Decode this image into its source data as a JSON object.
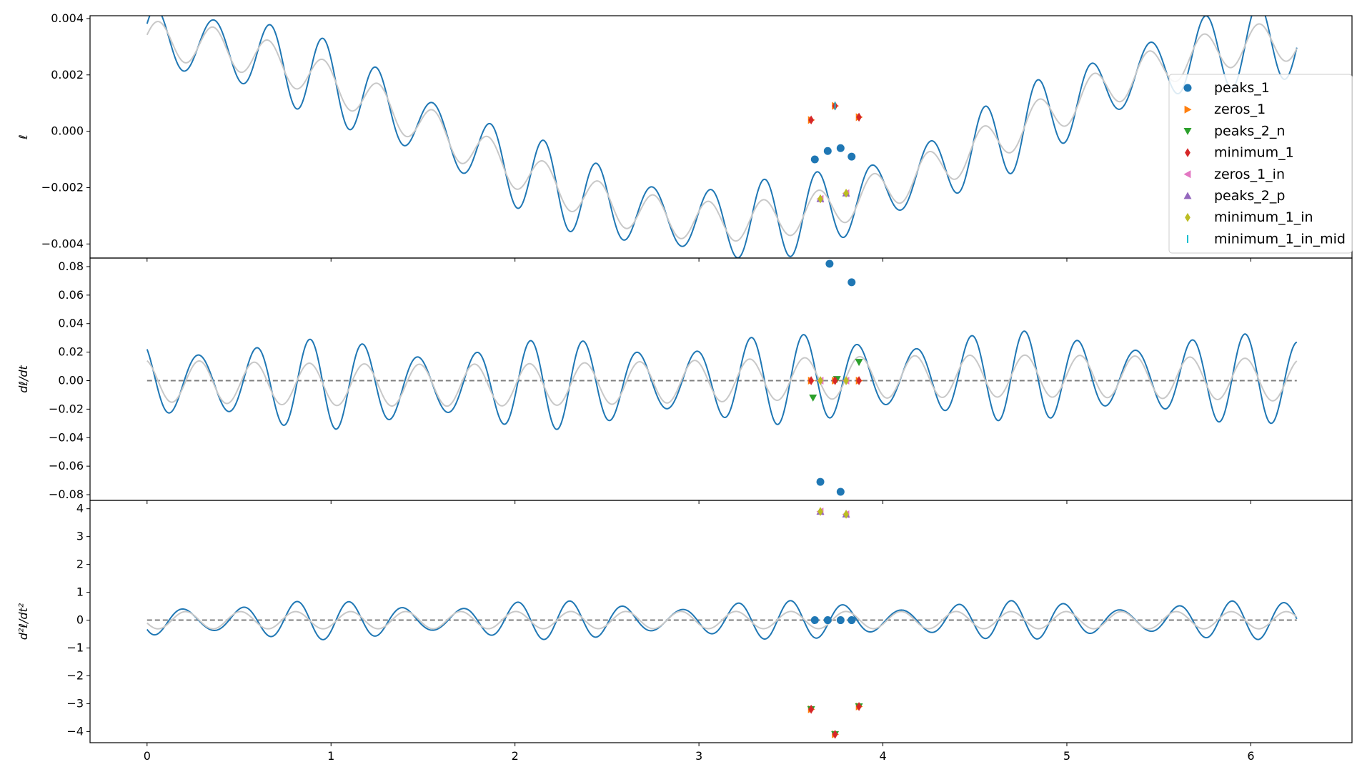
{
  "chart_data": [
    {
      "type": "line",
      "panel": "top",
      "ylabel": "ℓ",
      "xlim": [
        -0.31,
        6.55
      ],
      "ylim": [
        -0.0045,
        0.0041
      ],
      "yticks": [
        -0.004,
        -0.002,
        0.0,
        0.002,
        0.004
      ],
      "ytick_labels": [
        "−0.004",
        "−0.002",
        "0.000",
        "0.002",
        "0.004"
      ],
      "xticks": [
        0,
        1,
        2,
        3,
        4,
        5,
        6
      ],
      "xtick_labels": [
        "0",
        "1",
        "2",
        "3",
        "4",
        "5",
        "6"
      ],
      "series": [
        {
          "role": "signal",
          "color": "#1f77b4",
          "model": "0.0032*cos(t) + 0.0012*cos(21t-1.25) + 0.00025*cos(26t+0.3)",
          "t_range": [
            0,
            6.25
          ]
        },
        {
          "role": "smooth",
          "color": "#c8c8c8",
          "model": "0.0032*cos(t) + 0.0007*cos(21t-1.25)",
          "t_range": [
            0,
            6.25
          ]
        }
      ],
      "markers": [
        {
          "x": 3.63,
          "y": -0.001,
          "series": "peaks_1"
        },
        {
          "x": 3.7,
          "y": -0.0007,
          "series": "peaks_1"
        },
        {
          "x": 3.77,
          "y": -0.0006,
          "series": "peaks_1"
        },
        {
          "x": 3.83,
          "y": -0.0009,
          "series": "peaks_1"
        },
        {
          "x": 3.61,
          "y": 0.0004,
          "series": "zeros_1"
        },
        {
          "x": 3.74,
          "y": 0.0009,
          "series": "zeros_1"
        },
        {
          "x": 3.87,
          "y": 0.0005,
          "series": "zeros_1"
        },
        {
          "x": 3.61,
          "y": 0.0004,
          "series": "minimum_1"
        },
        {
          "x": 3.74,
          "y": 0.0009,
          "series": "minimum_1"
        },
        {
          "x": 3.87,
          "y": 0.0005,
          "series": "minimum_1"
        },
        {
          "x": 3.66,
          "y": -0.0024,
          "series": "zeros_1_in"
        },
        {
          "x": 3.8,
          "y": -0.0022,
          "series": "zeros_1_in"
        },
        {
          "x": 3.66,
          "y": -0.0024,
          "series": "peaks_2_p"
        },
        {
          "x": 3.8,
          "y": -0.0022,
          "series": "peaks_2_p"
        },
        {
          "x": 3.66,
          "y": -0.0024,
          "series": "minimum_1_in"
        },
        {
          "x": 3.8,
          "y": -0.0022,
          "series": "minimum_1_in"
        },
        {
          "x": 3.74,
          "y": 0.0009,
          "series": "minimum_1_in_mid"
        }
      ],
      "legend": {
        "position": "right",
        "entries": [
          {
            "label": "peaks_1",
            "color": "#1f77b4",
            "shape": "circle"
          },
          {
            "label": "zeros_1",
            "color": "#ff7f0e",
            "shape": "triangle-right"
          },
          {
            "label": "peaks_2_n",
            "color": "#2ca02c",
            "shape": "triangle-down"
          },
          {
            "label": "minimum_1",
            "color": "#d62728",
            "shape": "diamond"
          },
          {
            "label": "zeros_1_in",
            "color": "#e377c2",
            "shape": "triangle-left"
          },
          {
            "label": "peaks_2_p",
            "color": "#9467bd",
            "shape": "triangle-up"
          },
          {
            "label": "minimum_1_in",
            "color": "#bcbd22",
            "shape": "diamond"
          },
          {
            "label": "minimum_1_in_mid",
            "color": "#17becf",
            "shape": "vline"
          }
        ]
      }
    },
    {
      "type": "line",
      "panel": "middle",
      "ylabel": "dℓ/dt",
      "xlim": [
        -0.31,
        6.55
      ],
      "ylim": [
        -0.084,
        0.086
      ],
      "yticks": [
        -0.08,
        -0.06,
        -0.04,
        -0.02,
        0.0,
        0.02,
        0.04,
        0.06,
        0.08
      ],
      "ytick_labels": [
        "−0.08",
        "−0.06",
        "−0.04",
        "−0.02",
        "0.00",
        "0.02",
        "0.04",
        "0.06",
        "0.08"
      ],
      "xticks": [
        0,
        1,
        2,
        3,
        4,
        5,
        6
      ],
      "zero_line": true,
      "series": [
        {
          "role": "signal",
          "color": "#1f77b4",
          "model": "derivative of top signal",
          "t_range": [
            0,
            6.25
          ]
        },
        {
          "role": "smooth",
          "color": "#c8c8c8",
          "model": "derivative of top smooth",
          "t_range": [
            0,
            6.25
          ]
        }
      ],
      "markers": [
        {
          "x": 3.66,
          "y": -0.071,
          "series": "peaks_1"
        },
        {
          "x": 3.71,
          "y": 0.082,
          "series": "peaks_1"
        },
        {
          "x": 3.77,
          "y": -0.078,
          "series": "peaks_1"
        },
        {
          "x": 3.83,
          "y": 0.069,
          "series": "peaks_1"
        },
        {
          "x": 3.61,
          "y": 0.0,
          "series": "zeros_1"
        },
        {
          "x": 3.74,
          "y": 0.0,
          "series": "zeros_1"
        },
        {
          "x": 3.87,
          "y": 0.0,
          "series": "zeros_1"
        },
        {
          "x": 3.62,
          "y": -0.012,
          "series": "peaks_2_n"
        },
        {
          "x": 3.75,
          "y": 0.001,
          "series": "peaks_2_n"
        },
        {
          "x": 3.87,
          "y": 0.013,
          "series": "peaks_2_n"
        },
        {
          "x": 3.61,
          "y": 0.0,
          "series": "minimum_1"
        },
        {
          "x": 3.74,
          "y": 0.0,
          "series": "minimum_1"
        },
        {
          "x": 3.87,
          "y": 0.0,
          "series": "minimum_1"
        },
        {
          "x": 3.66,
          "y": 0.0,
          "series": "zeros_1_in"
        },
        {
          "x": 3.8,
          "y": 0.0,
          "series": "zeros_1_in"
        },
        {
          "x": 3.66,
          "y": 0.0,
          "series": "minimum_1_in"
        },
        {
          "x": 3.8,
          "y": 0.0,
          "series": "minimum_1_in"
        }
      ]
    },
    {
      "type": "line",
      "panel": "bottom",
      "ylabel": "d²ℓ/dt²",
      "xlim": [
        -0.31,
        6.55
      ],
      "ylim": [
        -4.4,
        4.3
      ],
      "yticks": [
        -4,
        -3,
        -2,
        -1,
        0,
        1,
        2,
        3,
        4
      ],
      "ytick_labels": [
        "−4",
        "−3",
        "−2",
        "−1",
        "0",
        "1",
        "2",
        "3",
        "4"
      ],
      "xticks": [
        0,
        1,
        2,
        3,
        4,
        5,
        6
      ],
      "xtick_labels": [
        "0",
        "1",
        "2",
        "3",
        "4",
        "5",
        "6"
      ],
      "zero_line": true,
      "series": [
        {
          "role": "signal",
          "color": "#1f77b4",
          "model": "second derivative of top signal",
          "t_range": [
            0,
            6.25
          ]
        },
        {
          "role": "smooth",
          "color": "#c8c8c8",
          "model": "second derivative of top smooth",
          "t_range": [
            0,
            6.25
          ]
        }
      ],
      "markers": [
        {
          "x": 3.63,
          "y": 0.0,
          "series": "peaks_1"
        },
        {
          "x": 3.7,
          "y": 0.0,
          "series": "peaks_1"
        },
        {
          "x": 3.77,
          "y": 0.0,
          "series": "peaks_1"
        },
        {
          "x": 3.83,
          "y": 0.0,
          "series": "peaks_1"
        },
        {
          "x": 3.61,
          "y": -3.2,
          "series": "zeros_1"
        },
        {
          "x": 3.74,
          "y": -4.1,
          "series": "zeros_1"
        },
        {
          "x": 3.87,
          "y": -3.1,
          "series": "zeros_1"
        },
        {
          "x": 3.61,
          "y": -3.2,
          "series": "peaks_2_n"
        },
        {
          "x": 3.74,
          "y": -4.1,
          "series": "peaks_2_n"
        },
        {
          "x": 3.87,
          "y": -3.1,
          "series": "peaks_2_n"
        },
        {
          "x": 3.61,
          "y": -3.2,
          "series": "minimum_1"
        },
        {
          "x": 3.74,
          "y": -4.1,
          "series": "minimum_1"
        },
        {
          "x": 3.87,
          "y": -3.1,
          "series": "minimum_1"
        },
        {
          "x": 3.66,
          "y": 3.9,
          "series": "zeros_1_in"
        },
        {
          "x": 3.8,
          "y": 3.8,
          "series": "zeros_1_in"
        },
        {
          "x": 3.66,
          "y": 3.9,
          "series": "peaks_2_p"
        },
        {
          "x": 3.8,
          "y": 3.8,
          "series": "peaks_2_p"
        },
        {
          "x": 3.66,
          "y": 3.9,
          "series": "minimum_1_in"
        },
        {
          "x": 3.8,
          "y": 3.8,
          "series": "minimum_1_in"
        }
      ]
    }
  ]
}
